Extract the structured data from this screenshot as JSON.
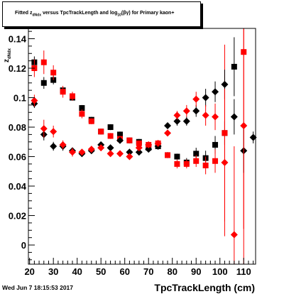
{
  "page": {
    "title_prefix": "Fitted  z",
    "title_sub1": "dNdx",
    "title_mid": " versus TpcTrackLength and log",
    "title_sub2": "10",
    "title_suffix": "(βγ) for Primary kaon+",
    "date_stamp": "Wed Jun  7 18:15:53 2017"
  },
  "chart_data": {
    "type": "scatter",
    "title": "Fitted z_dNdx versus TpcTrackLength and log10(βγ) for Primary kaon+",
    "xlabel": "TpcTrackLength (cm)",
    "ylabel": "z_dNdx",
    "xlim": [
      19.5,
      115
    ],
    "ylim": [
      -0.013,
      0.147
    ],
    "xticks": [
      20,
      30,
      40,
      50,
      60,
      70,
      80,
      90,
      100,
      110
    ],
    "xtick_labels": [
      "20",
      "30",
      "40",
      "50",
      "60",
      "70",
      "80",
      "90",
      "100",
      "110"
    ],
    "yticks": [
      0,
      0.02,
      0.04,
      0.06,
      0.08,
      0.1,
      0.12,
      0.14
    ],
    "ytick_labels": [
      "0",
      "0.02",
      "0.04",
      "0.06",
      "0.08",
      "0.1",
      "0.12",
      "0.14"
    ],
    "grid": false,
    "colors": {
      "black": "#000000",
      "red": "#ff0000"
    },
    "series": [
      {
        "marker": "square",
        "color": "#000000",
        "points": [
          {
            "x": 22,
            "y": 0.124,
            "err": 0.004
          },
          {
            "x": 26,
            "y": 0.11,
            "err": 0.004
          },
          {
            "x": 30,
            "y": 0.112,
            "err": 0.003
          },
          {
            "x": 34,
            "y": 0.105,
            "err": 0.002
          },
          {
            "x": 38,
            "y": 0.1,
            "err": 0.002
          },
          {
            "x": 42,
            "y": 0.093,
            "err": 0.002
          },
          {
            "x": 46,
            "y": 0.085,
            "err": 0.002
          },
          {
            "x": 50,
            "y": 0.077,
            "err": 0.002
          },
          {
            "x": 54,
            "y": 0.08,
            "err": 0.002
          },
          {
            "x": 58,
            "y": 0.075,
            "err": 0.002
          },
          {
            "x": 62,
            "y": 0.071,
            "err": 0.002
          },
          {
            "x": 66,
            "y": 0.07,
            "err": 0.002
          },
          {
            "x": 70,
            "y": 0.066,
            "err": 0.002
          },
          {
            "x": 74,
            "y": 0.067,
            "err": 0.002
          },
          {
            "x": 78,
            "y": 0.061,
            "err": 0.002
          },
          {
            "x": 82,
            "y": 0.06,
            "err": 0.002
          },
          {
            "x": 86,
            "y": 0.056,
            "err": 0.003
          },
          {
            "x": 90,
            "y": 0.062,
            "err": 0.004
          },
          {
            "x": 94,
            "y": 0.059,
            "err": 0.005
          },
          {
            "x": 98,
            "y": 0.068,
            "err": 0.006
          },
          {
            "x": 102,
            "y": 0.076,
            "err": 0.008
          },
          {
            "x": 106,
            "y": 0.121,
            "err": 0.02
          }
        ]
      },
      {
        "marker": "square",
        "color": "#ff0000",
        "points": [
          {
            "x": 22,
            "y": 0.12,
            "err": 0.006
          },
          {
            "x": 26,
            "y": 0.124,
            "err": 0.008
          },
          {
            "x": 30,
            "y": 0.117,
            "err": 0.005
          },
          {
            "x": 34,
            "y": 0.104,
            "err": 0.004
          },
          {
            "x": 38,
            "y": 0.101,
            "err": 0.003
          },
          {
            "x": 42,
            "y": 0.089,
            "err": 0.003
          },
          {
            "x": 46,
            "y": 0.084,
            "err": 0.002
          },
          {
            "x": 50,
            "y": 0.077,
            "err": 0.002
          },
          {
            "x": 54,
            "y": 0.074,
            "err": 0.002
          },
          {
            "x": 58,
            "y": 0.072,
            "err": 0.002
          },
          {
            "x": 62,
            "y": 0.071,
            "err": 0.002
          },
          {
            "x": 66,
            "y": 0.069,
            "err": 0.002
          },
          {
            "x": 70,
            "y": 0.068,
            "err": 0.002
          },
          {
            "x": 74,
            "y": 0.069,
            "err": 0.002
          },
          {
            "x": 78,
            "y": 0.061,
            "err": 0.002
          },
          {
            "x": 82,
            "y": 0.055,
            "err": 0.003
          },
          {
            "x": 86,
            "y": 0.055,
            "err": 0.003
          },
          {
            "x": 90,
            "y": 0.057,
            "err": 0.004
          },
          {
            "x": 94,
            "y": 0.054,
            "err": 0.006
          },
          {
            "x": 98,
            "y": 0.057,
            "err": 0.008
          },
          {
            "x": 102,
            "y": 0.076,
            "err": 0.06
          },
          {
            "x": 110,
            "y": 0.131,
            "err": 0.155
          }
        ]
      },
      {
        "marker": "diamond",
        "color": "#000000",
        "points": [
          {
            "x": 22,
            "y": 0.096,
            "err": 0.003
          },
          {
            "x": 26,
            "y": 0.075,
            "err": 0.004
          },
          {
            "x": 30,
            "y": 0.067,
            "err": 0.003
          },
          {
            "x": 34,
            "y": 0.067,
            "err": 0.003
          },
          {
            "x": 38,
            "y": 0.064,
            "err": 0.002
          },
          {
            "x": 42,
            "y": 0.062,
            "err": 0.002
          },
          {
            "x": 46,
            "y": 0.064,
            "err": 0.002
          },
          {
            "x": 50,
            "y": 0.068,
            "err": 0.002
          },
          {
            "x": 54,
            "y": 0.066,
            "err": 0.002
          },
          {
            "x": 58,
            "y": 0.071,
            "err": 0.002
          },
          {
            "x": 62,
            "y": 0.063,
            "err": 0.002
          },
          {
            "x": 66,
            "y": 0.063,
            "err": 0.002
          },
          {
            "x": 70,
            "y": 0.065,
            "err": 0.002
          },
          {
            "x": 74,
            "y": 0.067,
            "err": 0.002
          },
          {
            "x": 78,
            "y": 0.081,
            "err": 0.002
          },
          {
            "x": 82,
            "y": 0.084,
            "err": 0.003
          },
          {
            "x": 86,
            "y": 0.084,
            "err": 0.003
          },
          {
            "x": 90,
            "y": 0.091,
            "err": 0.004
          },
          {
            "x": 94,
            "y": 0.1,
            "err": 0.006
          },
          {
            "x": 98,
            "y": 0.104,
            "err": 0.007
          },
          {
            "x": 102,
            "y": 0.109,
            "err": 0.01
          },
          {
            "x": 106,
            "y": 0.087,
            "err": 0.012
          },
          {
            "x": 110,
            "y": 0.064,
            "err": 0.015
          },
          {
            "x": 114,
            "y": 0.073,
            "err": 0.004
          }
        ]
      },
      {
        "marker": "diamond",
        "color": "#ff0000",
        "points": [
          {
            "x": 22,
            "y": 0.098,
            "err": 0.004
          },
          {
            "x": 26,
            "y": 0.079,
            "err": 0.006
          },
          {
            "x": 30,
            "y": 0.077,
            "err": 0.004
          },
          {
            "x": 34,
            "y": 0.068,
            "err": 0.003
          },
          {
            "x": 38,
            "y": 0.063,
            "err": 0.003
          },
          {
            "x": 42,
            "y": 0.063,
            "err": 0.002
          },
          {
            "x": 46,
            "y": 0.065,
            "err": 0.002
          },
          {
            "x": 50,
            "y": 0.066,
            "err": 0.002
          },
          {
            "x": 54,
            "y": 0.062,
            "err": 0.002
          },
          {
            "x": 58,
            "y": 0.062,
            "err": 0.002
          },
          {
            "x": 62,
            "y": 0.06,
            "err": 0.002
          },
          {
            "x": 66,
            "y": 0.066,
            "err": 0.002
          },
          {
            "x": 70,
            "y": 0.068,
            "err": 0.002
          },
          {
            "x": 74,
            "y": 0.069,
            "err": 0.002
          },
          {
            "x": 78,
            "y": 0.076,
            "err": 0.002
          },
          {
            "x": 82,
            "y": 0.088,
            "err": 0.003
          },
          {
            "x": 86,
            "y": 0.091,
            "err": 0.004
          },
          {
            "x": 90,
            "y": 0.099,
            "err": 0.005
          },
          {
            "x": 94,
            "y": 0.088,
            "err": 0.007
          },
          {
            "x": 98,
            "y": 0.087,
            "err": 0.009
          },
          {
            "x": 102,
            "y": 0.056,
            "err": 0.05
          },
          {
            "x": 106,
            "y": 0.007,
            "err": 0.06
          },
          {
            "x": 110,
            "y": 0.081,
            "err": 0.07
          }
        ]
      }
    ]
  }
}
